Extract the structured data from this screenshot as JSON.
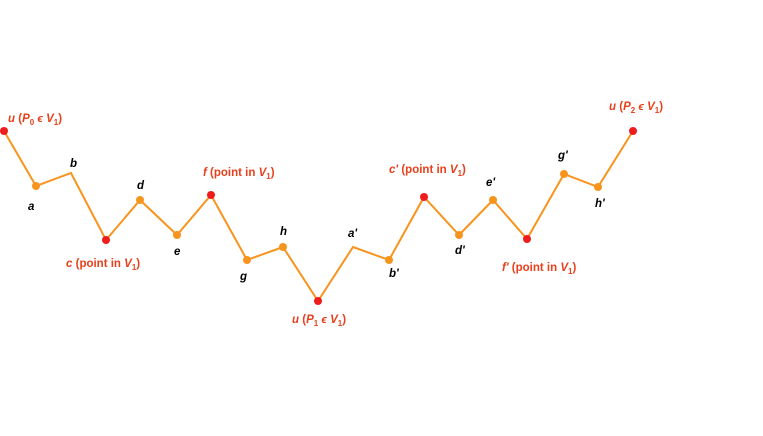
{
  "colors": {
    "path": "#f7941d",
    "point": "#f7941d",
    "special_point": "#ee1c1c",
    "special_text": "#e8401c",
    "label": "#000000"
  },
  "labels": {
    "a": "a",
    "b": "b",
    "d": "d",
    "e": "e",
    "g": "g",
    "h": "h",
    "a2": "a'",
    "b2": "b'",
    "d2": "d'",
    "e2": "e'",
    "g2": "g'",
    "h2": "h'"
  },
  "red_labels": {
    "u0": {
      "main": "u",
      "open": "(",
      "p": "P",
      "psub": "0",
      "in": "ϵ",
      "v": "V",
      "vsub": "1",
      "close": ")"
    },
    "u1": {
      "main": "u",
      "open": "(",
      "p": "P",
      "psub": "1",
      "in": "ϵ",
      "v": "V",
      "vsub": "1",
      "close": ")"
    },
    "u2": {
      "main": "u",
      "open": "(",
      "p": "P",
      "psub": "2",
      "in": "ϵ",
      "v": "V",
      "vsub": "1",
      "close": ")"
    },
    "c": {
      "main": "c",
      "text": "(point in ",
      "v": "V",
      "vsub": "1",
      "close": ")"
    },
    "f": {
      "main": "f",
      "text": "(point in ",
      "v": "V",
      "vsub": "1",
      "close": ")"
    },
    "c2": {
      "main": "c'",
      "text": "(point in ",
      "v": "V",
      "vsub": "1",
      "close": ")"
    },
    "f2": {
      "main": "f'",
      "text": "(point in ",
      "v": "V",
      "vsub": "1",
      "close": ")"
    }
  }
}
